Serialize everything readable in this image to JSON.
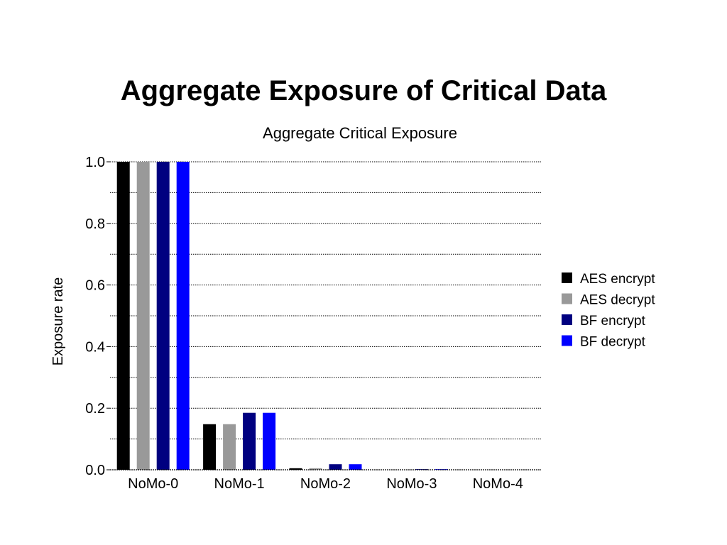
{
  "slide": {
    "title": "Aggregate Exposure of Critical Data"
  },
  "chart_data": {
    "type": "bar",
    "title": "Aggregate Critical Exposure",
    "xlabel": "",
    "ylabel": "Exposure rate",
    "categories": [
      "NoMo-0",
      "NoMo-1",
      "NoMo-2",
      "NoMo-3",
      "NoMo-4"
    ],
    "series": [
      {
        "name": "AES encrypt",
        "color": "#000000",
        "values": [
          1.0,
          0.148,
          0.005,
          0.0,
          0.0
        ]
      },
      {
        "name": "AES decrypt",
        "color": "#999999",
        "values": [
          1.0,
          0.148,
          0.005,
          0.0,
          0.0
        ]
      },
      {
        "name": "BF encrypt",
        "color": "#000080",
        "values": [
          1.0,
          0.185,
          0.018,
          0.002,
          0.0
        ]
      },
      {
        "name": "BF decrypt",
        "color": "#0000ff",
        "values": [
          1.0,
          0.185,
          0.018,
          0.002,
          0.0
        ]
      }
    ],
    "ylim": [
      0,
      1.0
    ],
    "yticks": [
      0.0,
      0.2,
      0.4,
      0.6,
      0.8,
      1.0
    ],
    "ytick_labels": [
      "0.0",
      "0.2",
      "0.4",
      "0.6",
      "0.8",
      "1.0"
    ],
    "minor_gridlines": [
      0.1,
      0.3,
      0.5,
      0.7,
      0.9
    ],
    "grid": true,
    "grid_style": "dotted",
    "legend_position": "right"
  }
}
